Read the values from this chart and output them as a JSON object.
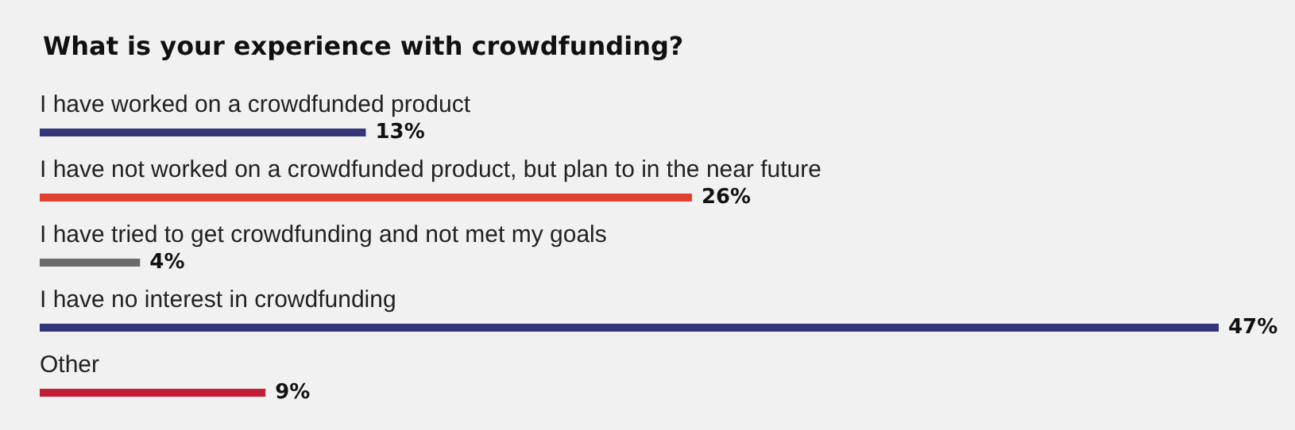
{
  "chart_data": {
    "type": "bar",
    "orientation": "horizontal",
    "title": "What is your experience with crowdfunding?",
    "categories": [
      "I have worked on a crowdfunded product",
      "I have not worked on a crowdfunded product, but plan to in the near future",
      "I have tried to get crowdfunding and not met my goals",
      "I have no interest in crowdfunding",
      "Other"
    ],
    "values": [
      13,
      26,
      4,
      47,
      9
    ],
    "colors": [
      "#35357a",
      "#e0402f",
      "#6b6b6b",
      "#35357a",
      "#c41e36"
    ],
    "value_labels": [
      "13%",
      "26%",
      "4%",
      "47%",
      "9%"
    ]
  }
}
